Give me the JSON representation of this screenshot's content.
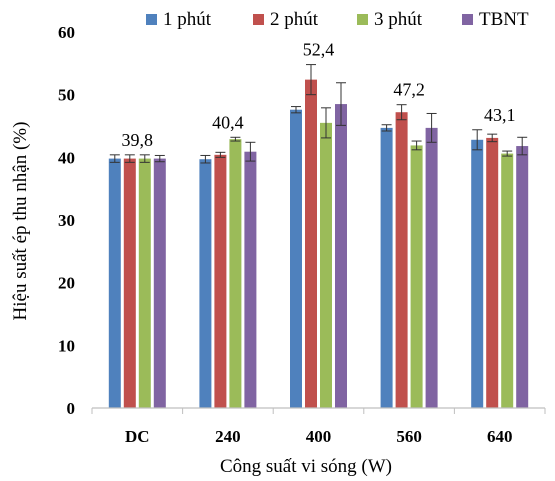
{
  "chart_data": {
    "type": "bar",
    "xlabel": "Công suất vi sóng (W)",
    "ylabel": "Hiệu suất ép thu nhận (%)",
    "ylim": [
      0,
      60
    ],
    "yticks": [
      "0",
      "10",
      "20",
      "30",
      "40",
      "50",
      "60"
    ],
    "categories": [
      "DC",
      "240",
      "400",
      "560",
      "640"
    ],
    "legend_position": "top",
    "grid": false,
    "series": [
      {
        "name": "1 phút",
        "color": "#4f81bd",
        "values": [
          39.8,
          39.7,
          47.6,
          44.7,
          42.8
        ],
        "errors": [
          0.6,
          0.6,
          0.5,
          0.5,
          1.6
        ]
      },
      {
        "name": "2 phút",
        "color": "#c0504d",
        "values": [
          39.8,
          40.4,
          52.4,
          47.2,
          43.1
        ],
        "errors": [
          0.6,
          0.4,
          2.4,
          1.2,
          0.6
        ]
      },
      {
        "name": "3 phút",
        "color": "#9bbb59",
        "values": [
          39.8,
          42.9,
          45.5,
          41.9,
          40.6
        ],
        "errors": [
          0.6,
          0.3,
          2.4,
          0.7,
          0.4
        ]
      },
      {
        "name": "TBNT",
        "color": "#8064a2",
        "values": [
          39.8,
          40.9,
          48.5,
          44.7,
          41.8
        ],
        "errors": [
          0.5,
          1.5,
          3.4,
          2.3,
          1.4
        ]
      }
    ],
    "annotations": [
      {
        "category": "DC",
        "text": "39,8"
      },
      {
        "category": "240",
        "text": "40,4"
      },
      {
        "category": "400",
        "text": "52,4"
      },
      {
        "category": "560",
        "text": "47,2"
      },
      {
        "category": "640",
        "text": "43,1"
      }
    ]
  }
}
